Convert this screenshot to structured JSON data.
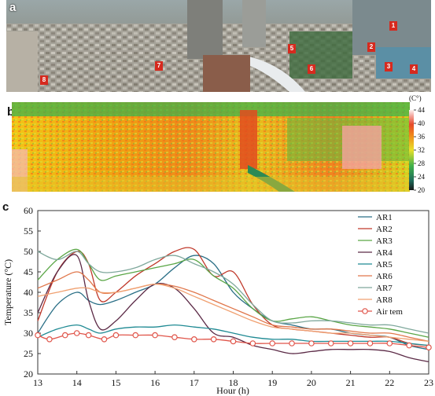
{
  "panels": {
    "a": "a",
    "b": "b",
    "c": "c"
  },
  "photo_markers": [
    "1",
    "2",
    "3",
    "4",
    "5",
    "6",
    "7",
    "8"
  ],
  "colorbar": {
    "unit": "(C°)",
    "ticks": [
      44,
      40,
      36,
      32,
      28,
      24,
      20
    ],
    "range": [
      20,
      44
    ]
  },
  "chart_data": {
    "type": "line",
    "title": "",
    "xlabel": "Hour (h)",
    "ylabel": "Temperature (°C)",
    "xlim": [
      13,
      23
    ],
    "ylim": [
      20,
      60
    ],
    "xticks": [
      13,
      14,
      15,
      16,
      17,
      18,
      19,
      20,
      21,
      22,
      23
    ],
    "yticks": [
      20,
      25,
      30,
      35,
      40,
      45,
      50,
      55,
      60
    ],
    "grid": false,
    "legend_position": "top-right",
    "series": [
      {
        "name": "AR1",
        "color": "#2a6f86",
        "x": [
          13,
          13.5,
          14,
          14.3,
          14.6,
          15,
          15.5,
          16,
          16.5,
          17,
          17.5,
          18,
          18.5,
          19,
          19.5,
          20,
          20.5,
          21,
          21.5,
          22,
          22.5,
          23
        ],
        "y": [
          30,
          37,
          40,
          38,
          37,
          38,
          40,
          42,
          46,
          49,
          47,
          40,
          36,
          33,
          32,
          31,
          31,
          30,
          29.5,
          29,
          27,
          26
        ]
      },
      {
        "name": "AR2",
        "color": "#c0392b",
        "x": [
          13,
          13.5,
          14,
          14.3,
          14.6,
          15,
          15.5,
          16,
          16.5,
          17,
          17.5,
          18,
          18.5,
          19,
          19.5,
          20,
          20.5,
          21,
          21.5,
          22,
          22.5,
          23
        ],
        "y": [
          33,
          45,
          50,
          47,
          38,
          40,
          44,
          47,
          50,
          50.5,
          44,
          45,
          37,
          32,
          31,
          30.5,
          30,
          29.5,
          29,
          29,
          27.5,
          27
        ]
      },
      {
        "name": "AR3",
        "color": "#5aa646",
        "x": [
          13,
          13.5,
          14,
          14.3,
          14.6,
          15,
          15.5,
          16,
          16.5,
          17,
          17.5,
          18,
          18.5,
          19,
          19.5,
          20,
          20.5,
          21,
          21.5,
          22,
          22.5,
          23
        ],
        "y": [
          43,
          48,
          50.5,
          47,
          43,
          44,
          45,
          46,
          47,
          48,
          44,
          41,
          36,
          33,
          33.5,
          34,
          33,
          32,
          31.5,
          31,
          30,
          29
        ]
      },
      {
        "name": "AR4",
        "color": "#5b2a46",
        "x": [
          13,
          13.5,
          14,
          14.3,
          14.6,
          15,
          15.5,
          16,
          16.5,
          17,
          17.5,
          18,
          18.5,
          19,
          19.5,
          20,
          20.5,
          21,
          21.5,
          22,
          22.5,
          23
        ],
        "y": [
          35,
          45,
          49,
          38,
          31,
          33,
          38,
          42,
          41,
          36,
          30,
          29,
          27,
          26,
          25,
          25.5,
          26,
          26,
          26,
          25.5,
          24,
          23
        ]
      },
      {
        "name": "AR5",
        "color": "#1f8a93",
        "x": [
          13,
          13.5,
          14,
          14.3,
          14.6,
          15,
          15.5,
          16,
          16.5,
          17,
          17.5,
          18,
          18.5,
          19,
          19.5,
          20,
          20.5,
          21,
          21.5,
          22,
          22.5,
          23
        ],
        "y": [
          29,
          31,
          32,
          31,
          30,
          31,
          31.5,
          31.5,
          32,
          31.5,
          31,
          30,
          29,
          28.5,
          28.5,
          28,
          28,
          28,
          28,
          28,
          27.5,
          27
        ]
      },
      {
        "name": "AR6",
        "color": "#e0764a",
        "x": [
          13,
          13.5,
          14,
          14.3,
          14.6,
          15,
          15.5,
          16,
          16.5,
          17,
          17.5,
          18,
          18.5,
          19,
          19.5,
          20,
          20.5,
          21,
          21.5,
          22,
          22.5,
          23
        ],
        "y": [
          41,
          43,
          45,
          43,
          40,
          40,
          41,
          42,
          41.5,
          40,
          38,
          36,
          34,
          32,
          31.5,
          31,
          31,
          30.5,
          30,
          30,
          29,
          28
        ]
      },
      {
        "name": "AR7",
        "color": "#7fa89c",
        "x": [
          13,
          13.5,
          14,
          14.3,
          14.6,
          15,
          15.5,
          16,
          16.5,
          17,
          17.5,
          18,
          18.5,
          19,
          19.5,
          20,
          20.5,
          21,
          21.5,
          22,
          22.5,
          23
        ],
        "y": [
          50,
          48,
          50,
          47,
          45,
          45,
          46,
          48,
          49,
          47,
          45,
          42,
          37,
          33,
          32.5,
          33,
          33,
          32.5,
          32,
          32,
          31,
          30
        ]
      },
      {
        "name": "AR8",
        "color": "#f0a070",
        "x": [
          13,
          13.5,
          14,
          14.3,
          14.6,
          15,
          15.5,
          16,
          16.5,
          17,
          17.5,
          18,
          18.5,
          19,
          19.5,
          20,
          20.5,
          21,
          21.5,
          22,
          22.5,
          23
        ],
        "y": [
          39,
          40,
          41,
          41,
          40,
          40,
          41,
          42,
          41,
          39,
          37,
          35,
          33,
          31.5,
          31,
          30.5,
          30,
          30,
          29.5,
          29,
          28.5,
          28
        ]
      },
      {
        "name": "Air tem",
        "color": "#e0554a",
        "marker": "circle",
        "x": [
          13,
          13.3,
          13.7,
          14,
          14.3,
          14.7,
          15,
          15.5,
          16,
          16.5,
          17,
          17.5,
          18,
          18.5,
          19,
          19.5,
          20,
          20.5,
          21,
          21.5,
          22,
          22.5,
          23
        ],
        "y": [
          29.5,
          28.5,
          29.5,
          30,
          29.5,
          28.5,
          29.5,
          29.5,
          29.5,
          29,
          28.5,
          28.5,
          28,
          27.5,
          27.5,
          27.5,
          27.5,
          27.5,
          27.5,
          27.5,
          27.5,
          27,
          26.5
        ]
      }
    ]
  }
}
